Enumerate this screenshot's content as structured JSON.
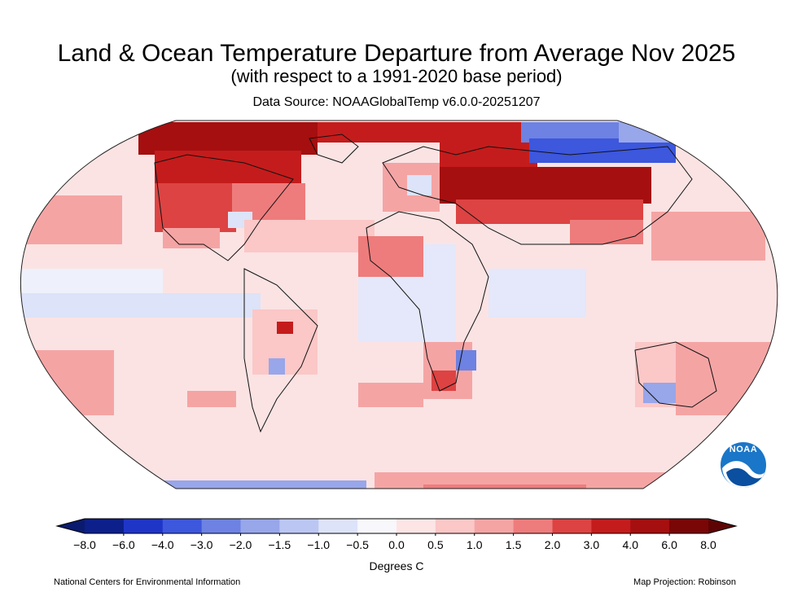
{
  "title": "Land & Ocean Temperature Departure from Average Nov 2025",
  "subtitle": "(with respect to a 1991-2020 base period)",
  "source": "Data Source: NOAAGlobalTemp v6.0.0-20251207",
  "units": "Degrees C",
  "footer_left": "National Centers for Environmental Information",
  "footer_right": "Map Projection: Robinson",
  "logo": {
    "text": "NOAA",
    "icon": "noaa-logo-icon"
  },
  "colorbar": {
    "ticks": [
      "−8.0",
      "−6.0",
      "−4.0",
      "−3.0",
      "−2.0",
      "−1.5",
      "−1.0",
      "−0.5",
      "0.0",
      "0.5",
      "1.0",
      "1.5",
      "2.0",
      "3.0",
      "4.0",
      "6.0",
      "8.0"
    ],
    "colors": [
      "#0d1f8a",
      "#1f35c8",
      "#3d57dd",
      "#6d82e2",
      "#98a6ea",
      "#bcc6f3",
      "#dde3f8",
      "#f7f7fc",
      "#fde5e5",
      "#fbc7c7",
      "#f5a4a4",
      "#ee7c7c",
      "#dd4343",
      "#c41c1c",
      "#a50f0f",
      "#7a0606"
    ]
  },
  "map": {
    "projection": "Robinson",
    "ocean_fill": "#fbe3e3"
  }
}
